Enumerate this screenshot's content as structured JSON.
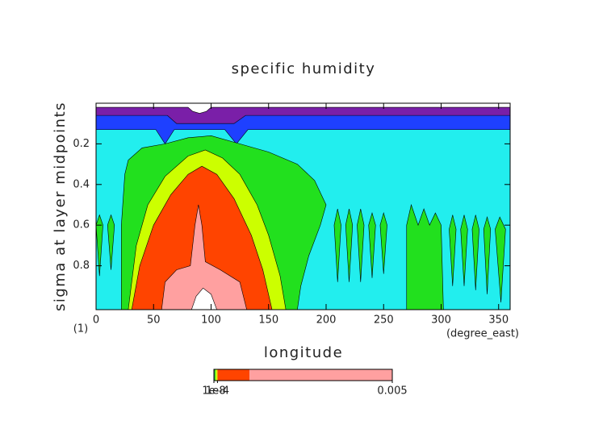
{
  "chart_data": {
    "type": "contour",
    "title": "specific humidity",
    "xlabel": "longitude",
    "ylabel": "sigma at layer midpoints",
    "x_unit": "(degree_east)",
    "y_unit": "(1)",
    "xlim": [
      0,
      360
    ],
    "xticks": [
      0,
      50,
      100,
      150,
      200,
      250,
      300,
      350
    ],
    "ylim": [
      1.016,
      0
    ],
    "yticks": [
      0.2,
      0.4,
      0.6,
      0.8
    ],
    "regions": [
      {
        "color": "#22eeee",
        "points": [
          [
            0,
            0
          ],
          [
            360,
            0
          ],
          [
            360,
            1.016
          ],
          [
            0,
            1.016
          ]
        ]
      },
      {
        "color": "#1e40ff",
        "points": [
          [
            0,
            0
          ],
          [
            360,
            0
          ],
          [
            360,
            0.13
          ],
          [
            132,
            0.13
          ],
          [
            122,
            0.2
          ],
          [
            112,
            0.13
          ],
          [
            68,
            0.13
          ],
          [
            60,
            0.2
          ],
          [
            52,
            0.13
          ],
          [
            0,
            0.13
          ]
        ]
      },
      {
        "color": "#7a1fa8",
        "points": [
          [
            0,
            0
          ],
          [
            360,
            0
          ],
          [
            360,
            0.06
          ],
          [
            130,
            0.06
          ],
          [
            120,
            0.1
          ],
          [
            70,
            0.1
          ],
          [
            62,
            0.06
          ],
          [
            0,
            0.06
          ]
        ]
      },
      {
        "color": "#ffffff",
        "points": [
          [
            0,
            0
          ],
          [
            360,
            0
          ],
          [
            360,
            0.02
          ],
          [
            100,
            0.02
          ],
          [
            96,
            0.04
          ],
          [
            90,
            0.05
          ],
          [
            84,
            0.04
          ],
          [
            80,
            0.02
          ],
          [
            0,
            0.02
          ]
        ]
      },
      {
        "color": "#22e01e",
        "points": [
          [
            22,
            1.016
          ],
          [
            22,
            0.6
          ],
          [
            25,
            0.35
          ],
          [
            28,
            0.28
          ],
          [
            40,
            0.22
          ],
          [
            60,
            0.2
          ],
          [
            80,
            0.17
          ],
          [
            100,
            0.16
          ],
          [
            125,
            0.2
          ],
          [
            150,
            0.24
          ],
          [
            175,
            0.3
          ],
          [
            190,
            0.38
          ],
          [
            200,
            0.5
          ],
          [
            195,
            0.6
          ],
          [
            185,
            0.75
          ],
          [
            178,
            0.9
          ],
          [
            175,
            1.016
          ]
        ]
      },
      {
        "color": "#ccff00",
        "points": [
          [
            28,
            1.016
          ],
          [
            35,
            0.7
          ],
          [
            45,
            0.5
          ],
          [
            60,
            0.36
          ],
          [
            80,
            0.26
          ],
          [
            95,
            0.23
          ],
          [
            110,
            0.27
          ],
          [
            125,
            0.35
          ],
          [
            140,
            0.5
          ],
          [
            150,
            0.65
          ],
          [
            160,
            0.85
          ],
          [
            165,
            1.016
          ]
        ]
      },
      {
        "color": "#ff4400",
        "points": [
          [
            31,
            1.016
          ],
          [
            38,
            0.8
          ],
          [
            50,
            0.6
          ],
          [
            65,
            0.45
          ],
          [
            80,
            0.35
          ],
          [
            92,
            0.31
          ],
          [
            105,
            0.35
          ],
          [
            120,
            0.47
          ],
          [
            135,
            0.65
          ],
          [
            145,
            0.82
          ],
          [
            153,
            1.016
          ]
        ]
      },
      {
        "color": "#ffa0a0",
        "points": [
          [
            57,
            1.016
          ],
          [
            60,
            0.88
          ],
          [
            70,
            0.82
          ],
          [
            82,
            0.8
          ],
          [
            86,
            0.6
          ],
          [
            89,
            0.5
          ],
          [
            92,
            0.6
          ],
          [
            95,
            0.78
          ],
          [
            108,
            0.82
          ],
          [
            125,
            0.88
          ],
          [
            131,
            1.016
          ]
        ]
      },
      {
        "color": "#ffffff",
        "points": [
          [
            83,
            1.016
          ],
          [
            87,
            0.95
          ],
          [
            93,
            0.91
          ],
          [
            100,
            0.94
          ],
          [
            105,
            1.016
          ]
        ]
      },
      {
        "color": "#22e01e",
        "points": [
          [
            0,
            0.6
          ],
          [
            3,
            0.85
          ],
          [
            6,
            0.6
          ],
          [
            3,
            0.55
          ]
        ]
      },
      {
        "color": "#22e01e",
        "points": [
          [
            10,
            0.6
          ],
          [
            13,
            0.82
          ],
          [
            16,
            0.6
          ],
          [
            13,
            0.55
          ]
        ]
      },
      {
        "color": "#22e01e",
        "points": [
          [
            207,
            0.6
          ],
          [
            210,
            0.88
          ],
          [
            213,
            0.6
          ],
          [
            210,
            0.52
          ]
        ]
      },
      {
        "color": "#22e01e",
        "points": [
          [
            217,
            0.6
          ],
          [
            220,
            0.88
          ],
          [
            223,
            0.6
          ],
          [
            220,
            0.52
          ]
        ]
      },
      {
        "color": "#22e01e",
        "points": [
          [
            227,
            0.6
          ],
          [
            230,
            0.88
          ],
          [
            233,
            0.6
          ],
          [
            230,
            0.52
          ]
        ]
      },
      {
        "color": "#22e01e",
        "points": [
          [
            237,
            0.6
          ],
          [
            240,
            0.86
          ],
          [
            243,
            0.6
          ],
          [
            240,
            0.54
          ]
        ]
      },
      {
        "color": "#22e01e",
        "points": [
          [
            247,
            0.6
          ],
          [
            250,
            0.84
          ],
          [
            253,
            0.6
          ],
          [
            250,
            0.54
          ]
        ]
      },
      {
        "color": "#22e01e",
        "points": [
          [
            270,
            1.016
          ],
          [
            270,
            0.6
          ],
          [
            274,
            0.5
          ],
          [
            280,
            0.6
          ],
          [
            285,
            0.52
          ],
          [
            290,
            0.6
          ],
          [
            295,
            0.54
          ],
          [
            300,
            0.6
          ],
          [
            302,
            1.016
          ]
        ]
      },
      {
        "color": "#22e01e",
        "points": [
          [
            307,
            0.62
          ],
          [
            310,
            0.9
          ],
          [
            313,
            0.62
          ],
          [
            310,
            0.55
          ]
        ]
      },
      {
        "color": "#22e01e",
        "points": [
          [
            317,
            0.62
          ],
          [
            320,
            0.9
          ],
          [
            323,
            0.62
          ],
          [
            320,
            0.55
          ]
        ]
      },
      {
        "color": "#22e01e",
        "points": [
          [
            327,
            0.62
          ],
          [
            330,
            0.92
          ],
          [
            333,
            0.62
          ],
          [
            330,
            0.55
          ]
        ]
      },
      {
        "color": "#22e01e",
        "points": [
          [
            337,
            0.62
          ],
          [
            340,
            0.94
          ],
          [
            343,
            0.62
          ],
          [
            340,
            0.56
          ]
        ]
      },
      {
        "color": "#22e01e",
        "points": [
          [
            347,
            0.62
          ],
          [
            352,
            0.98
          ],
          [
            356,
            0.62
          ],
          [
            351,
            0.56
          ]
        ]
      }
    ],
    "colorbar": {
      "lim": [
        0,
        0.005
      ],
      "segments": [
        {
          "from": 0,
          "to": 2e-05,
          "color": "#333333"
        },
        {
          "from": 2e-05,
          "to": 5e-05,
          "color": "#22e01e"
        },
        {
          "from": 5e-05,
          "to": 0.0001,
          "color": "#ccff00"
        },
        {
          "from": 0.0001,
          "to": 0.001,
          "color": "#ff4400"
        },
        {
          "from": 0.001,
          "to": 0.005,
          "color": "#ffa0a0"
        }
      ],
      "ticks": [
        {
          "value": 1e-08,
          "label": "1e-8"
        },
        {
          "value": 0.0001,
          "label": "1e-4"
        },
        0.005
      ]
    }
  }
}
